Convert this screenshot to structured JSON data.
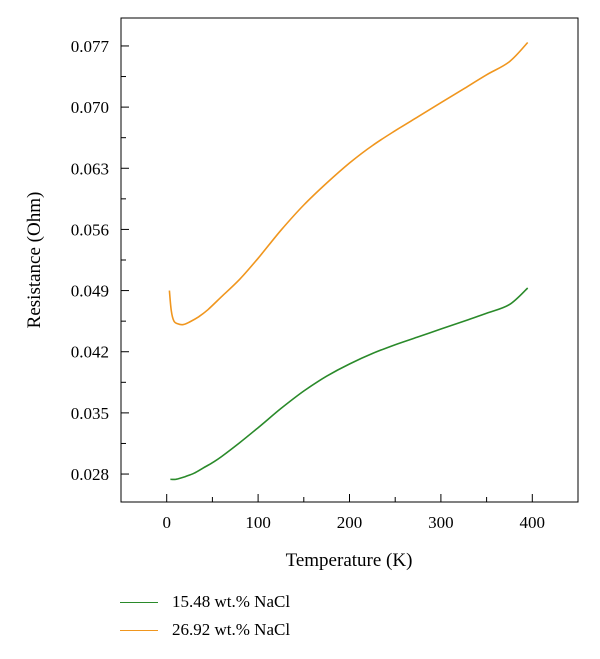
{
  "chart_data": {
    "type": "line",
    "xlabel": "Temperature (K)",
    "ylabel": "Resistance (Ohm)",
    "xlim": [
      -50,
      450
    ],
    "ylim": [
      0.0248,
      0.0802
    ],
    "x_ticks": [
      0,
      100,
      200,
      300,
      400
    ],
    "y_ticks": [
      0.028,
      0.035,
      0.042,
      0.049,
      0.056,
      0.063,
      0.07,
      0.077
    ],
    "y_tick_labels": [
      "0.028",
      "0.035",
      "0.042",
      "0.049",
      "0.056",
      "0.063",
      "0.070",
      "0.077"
    ],
    "grid": false,
    "legend_position": "bottom-left",
    "series": [
      {
        "name": "15.48 wt.% NaCl",
        "color": "#2a8a2a",
        "x": [
          4,
          10,
          20,
          30,
          40,
          50,
          60,
          80,
          100,
          125,
          150,
          175,
          200,
          225,
          250,
          275,
          300,
          325,
          350,
          375,
          395
        ],
        "y": [
          0.0274,
          0.0274,
          0.0277,
          0.0281,
          0.0287,
          0.0293,
          0.03,
          0.0316,
          0.0333,
          0.0355,
          0.0375,
          0.0392,
          0.0406,
          0.0418,
          0.0428,
          0.0437,
          0.0446,
          0.0455,
          0.0464,
          0.0474,
          0.0493
        ]
      },
      {
        "name": "26.92 wt.% NaCl",
        "color": "#f0961e",
        "x": [
          3,
          5,
          8,
          12,
          18,
          25,
          35,
          45,
          60,
          80,
          100,
          125,
          150,
          175,
          200,
          225,
          250,
          275,
          300,
          325,
          350,
          375,
          395
        ],
        "y": [
          0.049,
          0.0467,
          0.0455,
          0.0452,
          0.0451,
          0.0454,
          0.046,
          0.0468,
          0.0483,
          0.0503,
          0.0527,
          0.0559,
          0.0588,
          0.0613,
          0.0636,
          0.0656,
          0.0673,
          0.0689,
          0.0705,
          0.0721,
          0.0737,
          0.0752,
          0.0774
        ]
      }
    ]
  }
}
